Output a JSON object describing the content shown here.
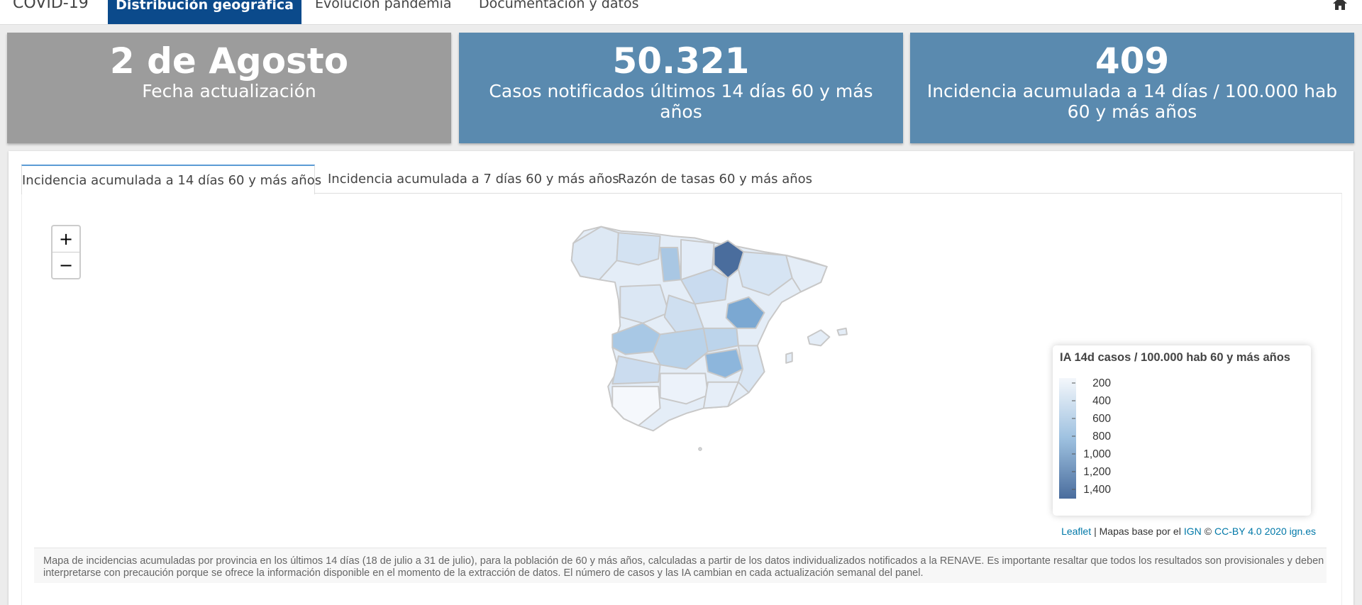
{
  "nav": {
    "brand": "COVID-19",
    "tabs": [
      "Distribución geográfica",
      "Evolución pandemia",
      "Documentación y datos"
    ]
  },
  "cards": [
    {
      "value": "2 de Agosto",
      "label": "Fecha actualización"
    },
    {
      "value": "50.321",
      "label": "Casos notificados últimos 14 días 60 y más años"
    },
    {
      "value": "409",
      "label": "Incidencia acumulada a 14 días / 100.000 hab 60 y más años"
    }
  ],
  "map_tabs": [
    "Incidencia acumulada a 14 días 60 y más años",
    "Incidencia acumulada a 7 días 60 y más años",
    "Razón de tasas 60 y más años"
  ],
  "zoom": [
    "+",
    "−"
  ],
  "legend": {
    "title": "IA 14d casos / 100.000 hab 60 y más años",
    "ticks": [
      "200",
      "400",
      "600",
      "800",
      "1,000",
      "1,200",
      "1,400"
    ]
  },
  "attribution": [
    "Leaflet",
    "| Mapas base por el",
    "IGN",
    "©",
    "CC-BY 4.0 2020 ign.es"
  ],
  "note": "Mapa de incidencias acumuladas por provincia en los últimos 14 días (18 de julio a 31 de julio), para la población de 60 y más años, calculadas a partir de los datos individualizados notificados a la RENAVE. Es importante resaltar que todos los resultados son provisionales y deben interpretarse con precaución porque se ofrece la información disponible en el momento de la extracción de datos. El número de casos y las IA cambian en cada actualización semanal del panel."
}
